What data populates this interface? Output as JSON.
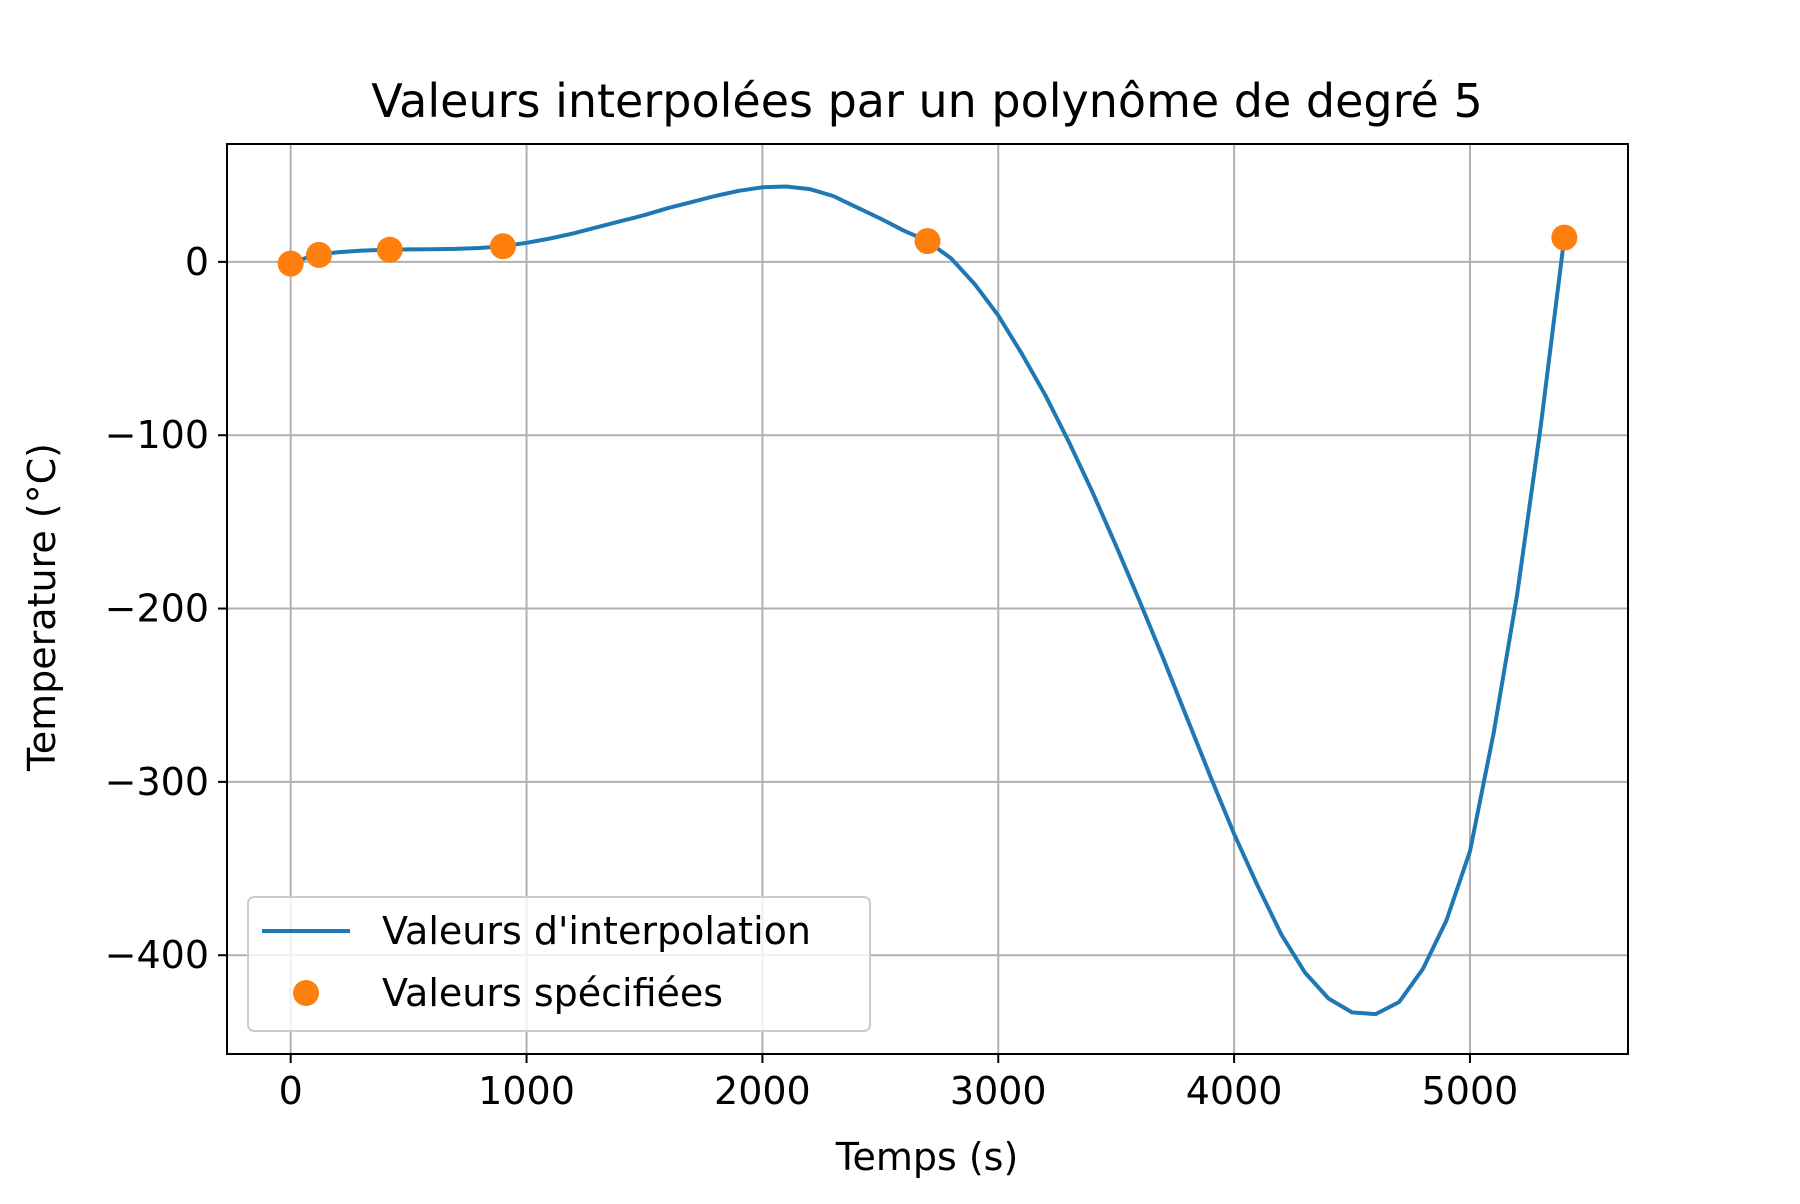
{
  "chart_data": {
    "type": "line",
    "title": "Valeurs interpolées par un polynôme de degré 5",
    "xlabel": "Temps (s)",
    "ylabel": "Temperature (°C)",
    "xlim": [
      -270,
      5670
    ],
    "ylim": [
      -457,
      68
    ],
    "xticks": [
      0,
      1000,
      2000,
      3000,
      4000,
      5000
    ],
    "yticks": [
      0,
      -100,
      -200,
      -300,
      -400
    ],
    "xtick_labels": [
      "0",
      "1000",
      "2000",
      "3000",
      "4000",
      "5000"
    ],
    "ytick_labels": [
      "0",
      "−100",
      "−200",
      "−300",
      "−400"
    ],
    "grid": true,
    "legend_position": "lower-left",
    "colors": {
      "interpolation": "#1f77b4",
      "specified": "#ff7f0e",
      "grid": "#b0b0b0",
      "axes": "#000000"
    },
    "series": [
      {
        "name": "Valeurs d'interpolation",
        "kind": "line",
        "x": [
          0,
          100,
          200,
          300,
          400,
          500,
          600,
          700,
          800,
          900,
          1000,
          1100,
          1200,
          1300,
          1400,
          1500,
          1600,
          1700,
          1800,
          1900,
          2000,
          2100,
          2200,
          2300,
          2400,
          2500,
          2600,
          2700,
          2800,
          2900,
          3000,
          3100,
          3200,
          3300,
          3400,
          3500,
          3600,
          3700,
          3800,
          3900,
          4000,
          4100,
          4200,
          4300,
          4400,
          4500,
          4600,
          4700,
          4800,
          4900,
          5000,
          5100,
          5200,
          5300,
          5400
        ],
        "y": [
          -1,
          4,
          5.5,
          6.5,
          7,
          7.2,
          7.3,
          7.5,
          8,
          9,
          11,
          13.5,
          16.5,
          20,
          23.5,
          27,
          31,
          34.5,
          38,
          41,
          43,
          43.5,
          42,
          38,
          31.5,
          25,
          18,
          12,
          2,
          -12.8,
          -31,
          -53,
          -77,
          -104,
          -133,
          -164,
          -196,
          -229,
          -263,
          -297,
          -330,
          -360,
          -388,
          -410,
          -425,
          -433,
          -434,
          -427,
          -408,
          -380,
          -340,
          -272,
          -192,
          -95,
          14
        ]
      },
      {
        "name": "Valeurs spécifiées",
        "kind": "points",
        "x": [
          0,
          120,
          420,
          900,
          2700,
          5400
        ],
        "y": [
          -1,
          4,
          7,
          9,
          12,
          14
        ]
      }
    ]
  }
}
